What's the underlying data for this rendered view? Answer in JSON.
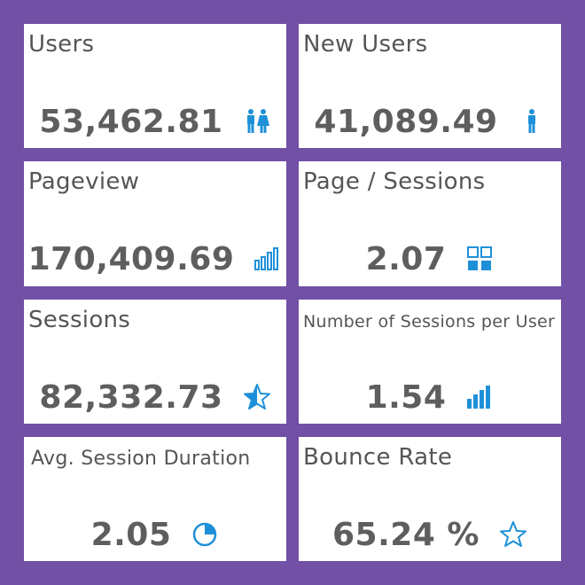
{
  "accent_color": "#1e90d8",
  "background_color": "#7150a6",
  "cards": [
    {
      "title": "Users",
      "value": "53,462.81",
      "icon": "users-icon"
    },
    {
      "title": "New Users",
      "value": "41,089.49",
      "icon": "user-icon"
    },
    {
      "title": "Pageview",
      "value": "170,409.69",
      "icon": "bar-chart-icon"
    },
    {
      "title": "Page / Sessions",
      "value": "2.07",
      "icon": "grid-icon"
    },
    {
      "title": "Sessions",
      "value": "82,332.73",
      "icon": "half-star-icon"
    },
    {
      "title": "Number of Sessions per User",
      "value": "1.54",
      "icon": "bar-chart-icon"
    },
    {
      "title": "Avg. Session Duration",
      "value": "2.05",
      "icon": "pie-chart-icon"
    },
    {
      "title": "Bounce Rate",
      "value": "65.24 %",
      "icon": "star-outline-icon"
    }
  ]
}
